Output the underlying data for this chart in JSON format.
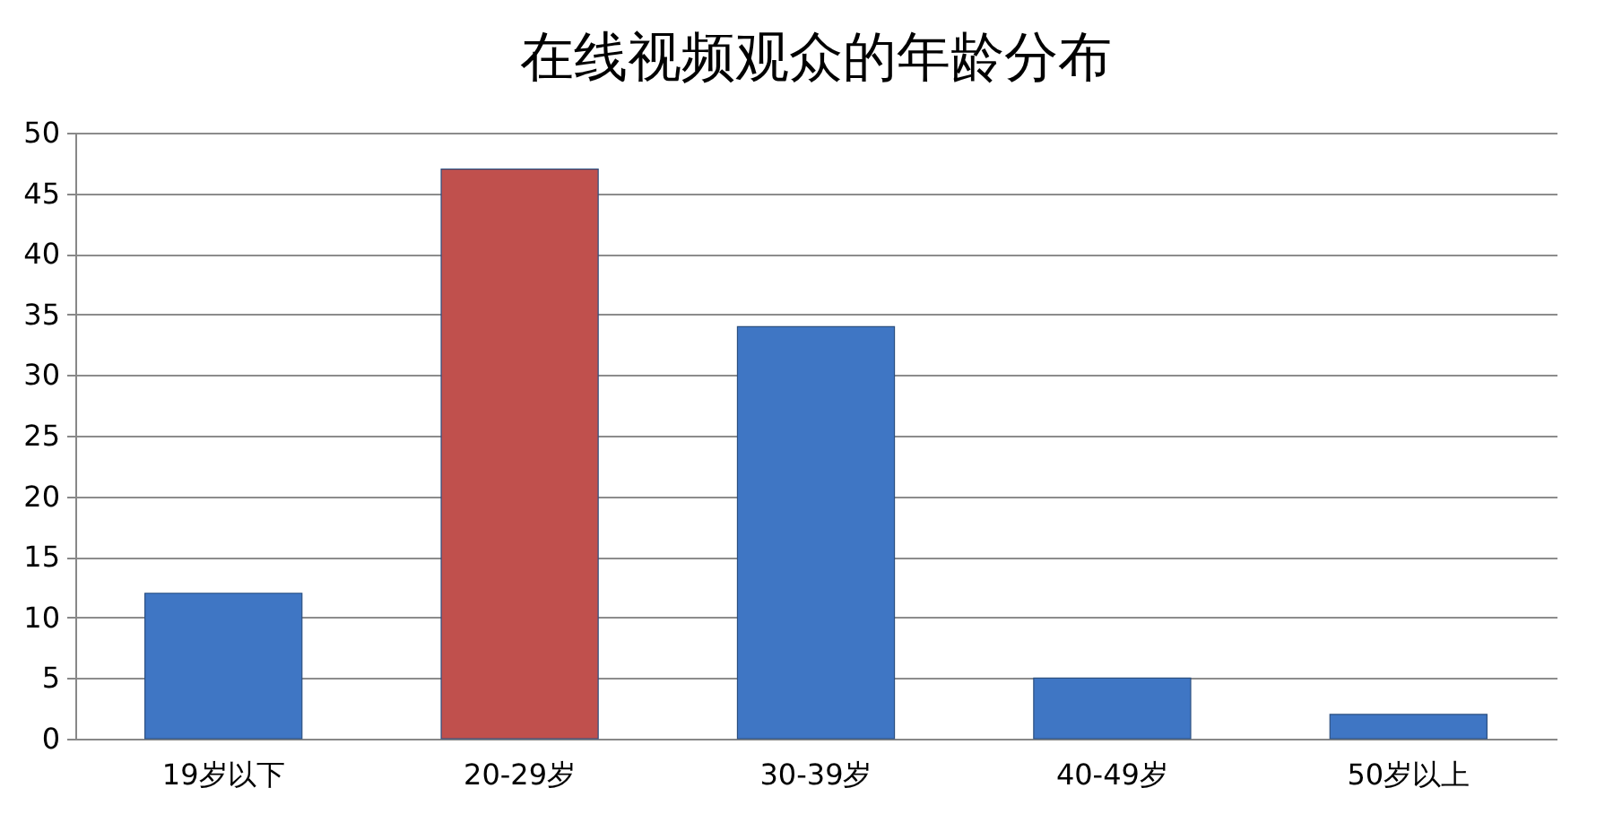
{
  "chart_data": {
    "type": "bar",
    "title": "在线视频观众的年龄分布",
    "categories": [
      "19岁以下",
      "20-29岁",
      "30-39岁",
      "40-49岁",
      "50岁以上"
    ],
    "values": [
      12,
      47,
      34,
      5,
      2
    ],
    "colors": [
      "#3f76c4",
      "#c0504d",
      "#3f76c4",
      "#3f76c4",
      "#3f76c4"
    ],
    "ylim": [
      0,
      50
    ],
    "yticks": [
      0,
      5,
      10,
      15,
      20,
      25,
      30,
      35,
      40,
      45,
      50
    ],
    "grid": "y"
  }
}
